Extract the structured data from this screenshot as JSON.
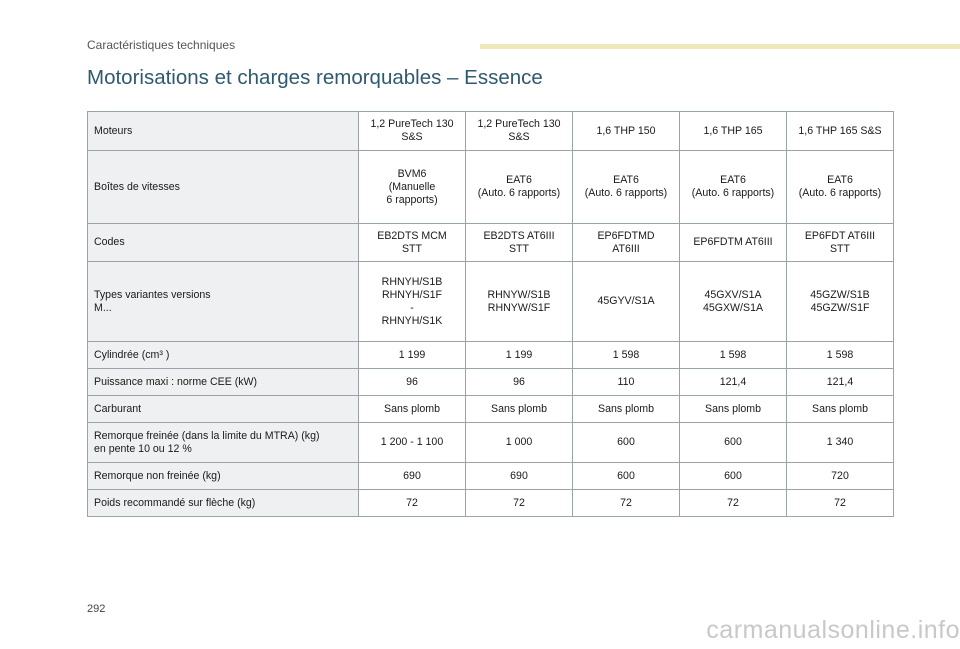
{
  "header": {
    "section": "Caractéristiques techniques",
    "title": "Motorisations et charges remorquables – Essence"
  },
  "table": {
    "rows": [
      {
        "label": "Moteurs",
        "cells": [
          "1,2 PureTech 130\nS&S",
          "1,2 PureTech 130\nS&S",
          "1,6 THP 150",
          "1,6 THP 165",
          "1,6 THP 165 S&S"
        ]
      },
      {
        "label": "Boîtes de vitesses",
        "cells": [
          "BVM6\n(Manuelle\n6 rapports)",
          "EAT6\n(Auto. 6 rapports)",
          "EAT6\n(Auto. 6 rapports)",
          "EAT6\n(Auto. 6 rapports)",
          "EAT6\n(Auto. 6 rapports)"
        ]
      },
      {
        "label": "Codes",
        "cells": [
          "EB2DTS MCM\nSTT",
          "EB2DTS AT6III\nSTT",
          "EP6FDTMD\nAT6III",
          "EP6FDTM AT6III",
          "EP6FDT AT6III\nSTT"
        ]
      },
      {
        "label": "Types variantes versions\nM...",
        "cells": [
          "RHNYH/S1B\nRHNYH/S1F\n-\nRHNYH/S1K",
          "RHNYW/S1B\nRHNYW/S1F",
          "45GYV/S1A",
          "45GXV/S1A\n45GXW/S1A",
          "45GZW/S1B\n45GZW/S1F"
        ]
      },
      {
        "label": "Cylindrée (cm³ )",
        "cells": [
          "1 199",
          "1 199",
          "1 598",
          "1 598",
          "1 598"
        ]
      },
      {
        "label": "Puissance maxi : norme CEE (kW)",
        "cells": [
          "96",
          "96",
          "110",
          "121,4",
          "121,4"
        ]
      },
      {
        "label": "Carburant",
        "cells": [
          "Sans plomb",
          "Sans plomb",
          "Sans plomb",
          "Sans plomb",
          "Sans plomb"
        ]
      },
      {
        "label": "Remorque freinée (dans la limite du MTRA) (kg)\nen pente 10 ou 12 %",
        "cells": [
          "1 200 - 1 100",
          "1 000",
          "600",
          "600",
          "1 340"
        ]
      },
      {
        "label": "Remorque non freinée (kg)",
        "cells": [
          "690",
          "690",
          "600",
          "600",
          "720"
        ]
      },
      {
        "label": "Poids recommandé sur flèche (kg)",
        "cells": [
          "72",
          "72",
          "72",
          "72",
          "72"
        ]
      }
    ]
  },
  "footer": {
    "page_number": "292",
    "watermark": "carmanualsonline.info"
  }
}
